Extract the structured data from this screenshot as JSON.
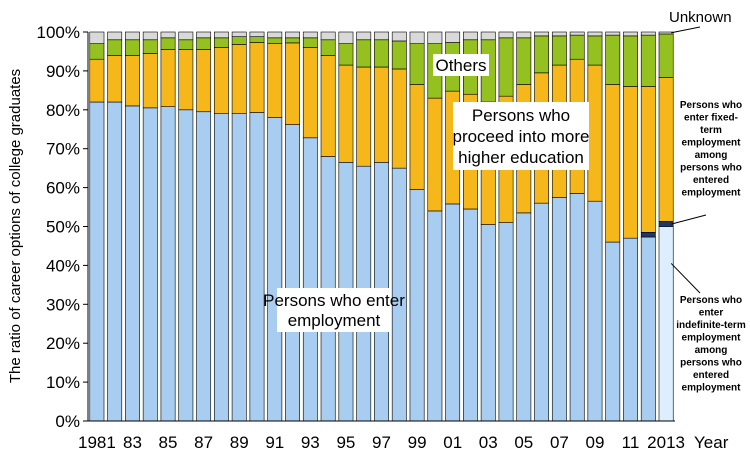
{
  "chart_data": {
    "type": "bar",
    "stacked": true,
    "ylabel": "The ratio of career options of college graduates",
    "xlabel": "Year",
    "ylim": [
      0,
      100
    ],
    "y_tick_labels": [
      "0%",
      "10%",
      "20%",
      "30%",
      "40%",
      "50%",
      "60%",
      "70%",
      "80%",
      "90%",
      "100%"
    ],
    "x_tick_labels": [
      "1981",
      "83",
      "85",
      "87",
      "89",
      "91",
      "93",
      "95",
      "97",
      "99",
      "01",
      "03",
      "05",
      "07",
      "09",
      "11",
      "2013"
    ],
    "x_tick_label_every": 2,
    "grid": false,
    "categories": [
      "1981",
      "1982",
      "1983",
      "1984",
      "1985",
      "1986",
      "1987",
      "1988",
      "1989",
      "1990",
      "1991",
      "1992",
      "1993",
      "1994",
      "1995",
      "1996",
      "1997",
      "1998",
      "1999",
      "2000",
      "2001",
      "2002",
      "2003",
      "2004",
      "2005",
      "2006",
      "2007",
      "2008",
      "2009",
      "2010",
      "2011",
      "2012",
      "2013"
    ],
    "series": [
      {
        "name": "Persons who enter employment",
        "color": "#a8cdf1",
        "values": [
          82,
          82,
          81,
          80.5,
          80.8,
          80,
          79.5,
          79,
          79,
          79.3,
          78,
          76.2,
          72.8,
          68,
          66.5,
          65.5,
          66.5,
          65,
          59.5,
          54,
          55.8,
          54.5,
          50.5,
          51,
          53.5,
          56,
          57.5,
          58.5,
          56.5,
          46,
          47,
          47.3,
          50
        ]
      },
      {
        "name": "Persons who enter fixed-term employment among persons who entered employment",
        "color": "#1f3864",
        "values": [
          0,
          0,
          0,
          0,
          0,
          0,
          0,
          0,
          0,
          0,
          0,
          0,
          0,
          0,
          0,
          0,
          0,
          0,
          0,
          0,
          0,
          0,
          0,
          0,
          0,
          0,
          0,
          0,
          0,
          0,
          0,
          1.2,
          1.3
        ]
      },
      {
        "name": "Persons who proceed into more higher education",
        "color": "#f5b719",
        "values": [
          11,
          12,
          13,
          14,
          14.7,
          15.5,
          16,
          17,
          17.8,
          18,
          19,
          21,
          23.2,
          26,
          25,
          25.5,
          24.5,
          25.5,
          27,
          29,
          29,
          29.5,
          31.5,
          32.5,
          33,
          33.5,
          34,
          34.5,
          35,
          40.5,
          39,
          37.5,
          37
        ]
      },
      {
        "name": "Others",
        "color": "#94c120",
        "values": [
          4,
          4,
          4,
          3.5,
          3,
          2.5,
          3,
          2.5,
          2,
          1.5,
          1.5,
          1.3,
          2.5,
          4,
          5.5,
          7,
          7,
          7.2,
          10.5,
          14,
          12.5,
          14,
          16,
          15,
          12,
          9.5,
          7.5,
          6.2,
          7.5,
          12.7,
          13,
          13.2,
          11.2
        ]
      },
      {
        "name": "Unknown",
        "color": "#d9d9d9",
        "values": [
          3,
          2,
          2,
          2,
          1.5,
          2,
          1.5,
          1.5,
          1.2,
          1.2,
          1.5,
          1.5,
          1.5,
          2,
          3,
          2,
          2,
          2.3,
          3,
          3,
          2.7,
          2,
          2,
          1.5,
          1.5,
          1,
          1,
          0.8,
          1,
          0.8,
          1,
          0.8,
          0.5
        ]
      }
    ],
    "annotations": {
      "unknown": "Unknown",
      "others": "Others",
      "higher_education": [
        "Persons who",
        "proceed into more",
        "higher education"
      ],
      "employment": [
        "Persons who enter",
        "employment"
      ],
      "fixed_term": [
        "Persons who",
        "enter fixed-",
        "term",
        "employment",
        "among",
        "persons who",
        "entered",
        "employment"
      ],
      "indefinite_term": [
        "Persons who",
        "enter",
        "indefinite-term",
        "employment",
        "among",
        "persons who",
        "entered",
        "employment"
      ]
    },
    "indefinite_term_highlight_color": "#ddeeff"
  }
}
